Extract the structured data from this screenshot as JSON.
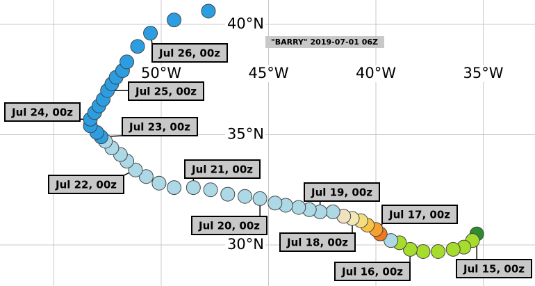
{
  "title": "\"BARRY\" 2019-07-01 06Z",
  "grid": {
    "lat": [
      {
        "value": 40,
        "label": "40°N"
      },
      {
        "value": 35,
        "label": "35°N"
      },
      {
        "value": 30,
        "label": "30°N"
      }
    ],
    "lon": [
      {
        "value": -50,
        "label": "50°W"
      },
      {
        "value": -45,
        "label": "45°W"
      },
      {
        "value": -40,
        "label": "40°W"
      },
      {
        "value": -35,
        "label": "35°W"
      }
    ]
  },
  "track": {
    "lon": [
      -35.3,
      -35.5,
      -35.9,
      -36.4,
      -37.1,
      -37.8,
      -38.4,
      -38.9,
      -39.3,
      -39.8,
      -40.0,
      -40.4,
      -40.7,
      -41.1,
      -41.5,
      -42.0,
      -42.6,
      -43.1,
      -43.6,
      -44.2,
      -44.7,
      -45.4,
      -46.1,
      -46.9,
      -47.7,
      -48.5,
      -49.4,
      -50.1,
      -50.7,
      -51.2,
      -51.6,
      -51.9,
      -52.3,
      -52.6,
      -52.8,
      -53.0,
      -53.3,
      -53.3,
      -53.1,
      -52.9,
      -52.7,
      -52.5,
      -52.3,
      -52.1,
      -51.8,
      -51.6,
      -51.1,
      -50.5,
      -49.4,
      -47.8
    ],
    "lat": [
      30.5,
      30.2,
      29.9,
      29.8,
      29.7,
      29.7,
      29.8,
      30.1,
      30.2,
      30.5,
      30.7,
      30.9,
      31.1,
      31.2,
      31.3,
      31.5,
      31.5,
      31.6,
      31.7,
      31.8,
      31.9,
      32.1,
      32.2,
      32.3,
      32.5,
      32.6,
      32.6,
      32.8,
      33.1,
      33.4,
      33.8,
      34.1,
      34.4,
      34.7,
      34.9,
      35.1,
      35.4,
      35.7,
      36.0,
      36.3,
      36.6,
      37.0,
      37.3,
      37.6,
      37.9,
      38.3,
      39.0,
      39.6,
      40.2,
      40.6
    ],
    "colors": [
      "#2e8b2e",
      "#a6dc2c",
      "#a6dc2c",
      "#a6dc2c",
      "#a6dc2c",
      "#a6dc2c",
      "#a6dc2c",
      "#a6dc2c",
      "#add8e6",
      "#f07a20",
      "#f5a030",
      "#f5c448",
      "#f5de80",
      "#f2e8b4",
      "#f0e2c0",
      "#add8e6",
      "#add8e6",
      "#add8e6",
      "#add8e6",
      "#add8e6",
      "#add8e6",
      "#add8e6",
      "#add8e6",
      "#add8e6",
      "#add8e6",
      "#add8e6",
      "#add8e6",
      "#add8e6",
      "#add8e6",
      "#add8e6",
      "#add8e6",
      "#add8e6",
      "#add8e6",
      "#add8e6",
      "#2b9de0",
      "#2b9de0",
      "#2b9de0",
      "#2b9de0",
      "#2b9de0",
      "#2b9de0",
      "#2b9de0",
      "#2b9de0",
      "#2b9de0",
      "#2b9de0",
      "#2b9de0",
      "#2b9de0",
      "#2b9de0",
      "#2b9de0",
      "#2b9de0",
      "#2b9de0"
    ]
  },
  "labels": [
    "Jul 15, 00z",
    "Jul 16, 00z",
    "Jul 17, 00z",
    "Jul 18, 00z",
    "Jul 19, 00z",
    "Jul 20, 00z",
    "Jul 21, 00z",
    "Jul 22, 00z",
    "Jul 23, 00z",
    "Jul 24, 00z",
    "Jul 25, 00z",
    "Jul 26, 00z"
  ]
}
